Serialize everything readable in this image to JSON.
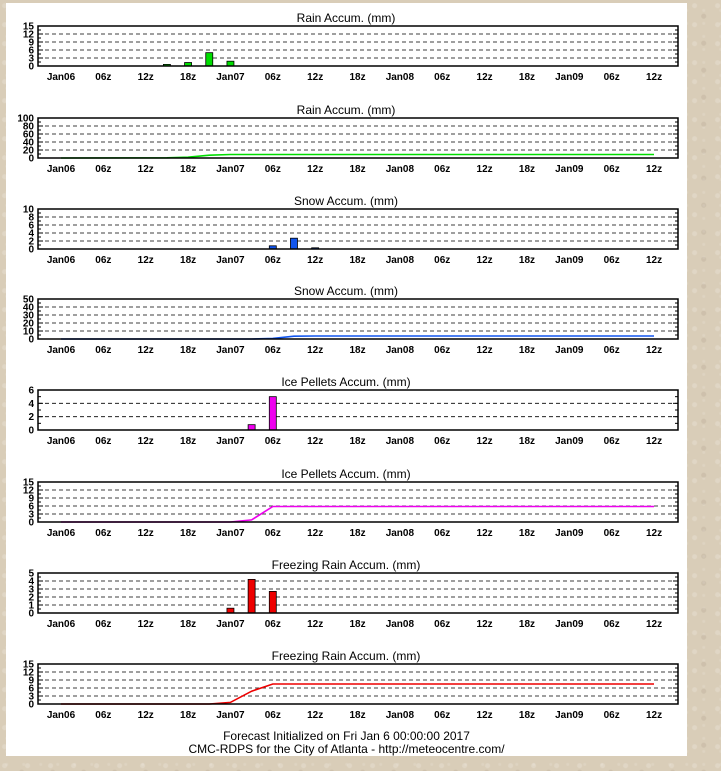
{
  "x_tick_labels": [
    "Jan06",
    "06z",
    "12z",
    "18z",
    "Jan07",
    "06z",
    "12z",
    "18z",
    "Jan08",
    "06z",
    "12z",
    "18z",
    "Jan09",
    "06z",
    "12z"
  ],
  "footer": {
    "line1": "Forecast Initialized on Fri Jan  6 00:00:00 2017",
    "line2": "CMC-RDPS for the City of Atlanta - http://meteocentre.com/"
  },
  "chart_data": [
    {
      "type": "bar",
      "title": "Rain Accum. (mm)",
      "color": "#00dd00",
      "ylim": [
        0,
        15
      ],
      "yticks": [
        0,
        3,
        6,
        9,
        12,
        15
      ],
      "x_hours": [
        15,
        18,
        21,
        24
      ],
      "values": [
        0.6,
        1.3,
        5.0,
        1.8
      ]
    },
    {
      "type": "line",
      "title": "Rain Accum. (mm)",
      "color": "#00dd00",
      "ylim": [
        0,
        100
      ],
      "yticks": [
        0,
        20,
        40,
        60,
        80,
        100
      ],
      "x_hours": [
        0,
        15,
        18,
        21,
        24,
        84
      ],
      "values": [
        0,
        0.6,
        1.9,
        6.9,
        8.7,
        8.7
      ]
    },
    {
      "type": "bar",
      "title": "Snow Accum. (mm)",
      "color": "#1155ee",
      "ylim": [
        0,
        10
      ],
      "yticks": [
        0,
        2,
        4,
        6,
        8,
        10
      ],
      "x_hours": [
        30,
        33,
        36
      ],
      "values": [
        0.8,
        2.7,
        0.3
      ]
    },
    {
      "type": "line",
      "title": "Snow Accum. (mm)",
      "color": "#1155ee",
      "ylim": [
        0,
        50
      ],
      "yticks": [
        0,
        10,
        20,
        30,
        40,
        50
      ],
      "x_hours": [
        0,
        27,
        30,
        33,
        36,
        84
      ],
      "values": [
        0,
        0,
        0.8,
        3.5,
        3.8,
        3.8
      ]
    },
    {
      "type": "bar",
      "title": "Ice Pellets Accum. (mm)",
      "color": "#ee00ee",
      "ylim": [
        0,
        6
      ],
      "yticks": [
        0,
        2,
        4,
        6
      ],
      "x_hours": [
        27,
        30
      ],
      "values": [
        0.8,
        5.0
      ]
    },
    {
      "type": "line",
      "title": "Ice Pellets Accum. (mm)",
      "color": "#ee00ee",
      "ylim": [
        0,
        15
      ],
      "yticks": [
        0,
        3,
        6,
        9,
        12,
        15
      ],
      "x_hours": [
        0,
        24,
        27,
        30,
        84
      ],
      "values": [
        0,
        0,
        0.8,
        5.8,
        5.8
      ]
    },
    {
      "type": "bar",
      "title": "Freezing Rain Accum. (mm)",
      "color": "#ee0000",
      "ylim": [
        0,
        5
      ],
      "yticks": [
        0,
        1,
        2,
        3,
        4,
        5
      ],
      "x_hours": [
        24,
        27,
        30
      ],
      "values": [
        0.6,
        4.2,
        2.7
      ]
    },
    {
      "type": "line",
      "title": "Freezing Rain Accum. (mm)",
      "color": "#ee0000",
      "ylim": [
        0,
        15
      ],
      "yticks": [
        0,
        3,
        6,
        9,
        12,
        15
      ],
      "x_hours": [
        0,
        21,
        24,
        27,
        30,
        84
      ],
      "values": [
        0,
        0,
        0.6,
        4.8,
        7.5,
        7.5
      ]
    }
  ]
}
